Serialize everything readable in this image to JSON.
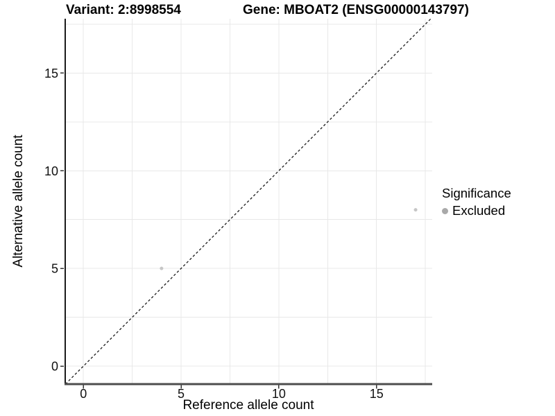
{
  "chart_data": {
    "type": "scatter",
    "title_variant": "Variant: 2:8998554",
    "title_gene": "Gene: MBOAT2 (ENSG00000143797)",
    "xlabel": "Reference allele count",
    "ylabel": "Alternative allele count",
    "xlim": [
      -0.93,
      17.85
    ],
    "ylim": [
      -0.92,
      17.78
    ],
    "x_ticks": [
      0,
      5,
      10,
      15
    ],
    "y_ticks": [
      0,
      5,
      10,
      15
    ],
    "grid": true,
    "grid_step": 2.5,
    "gridline_color": "#e8e8e8",
    "identity_line": {
      "type": "abline",
      "slope": 1,
      "intercept": 0,
      "style": "dashed",
      "color": "#1a1a1a"
    },
    "series": [
      {
        "name": "Excluded",
        "color": "#c6c6c6",
        "point_size": 2.5,
        "points": [
          {
            "x": 4,
            "y": 5
          },
          {
            "x": 17,
            "y": 8
          }
        ]
      }
    ],
    "legend": {
      "title": "Significance",
      "position": "right",
      "items": [
        {
          "label": "Excluded",
          "color": "#a9a9a9"
        }
      ]
    }
  }
}
